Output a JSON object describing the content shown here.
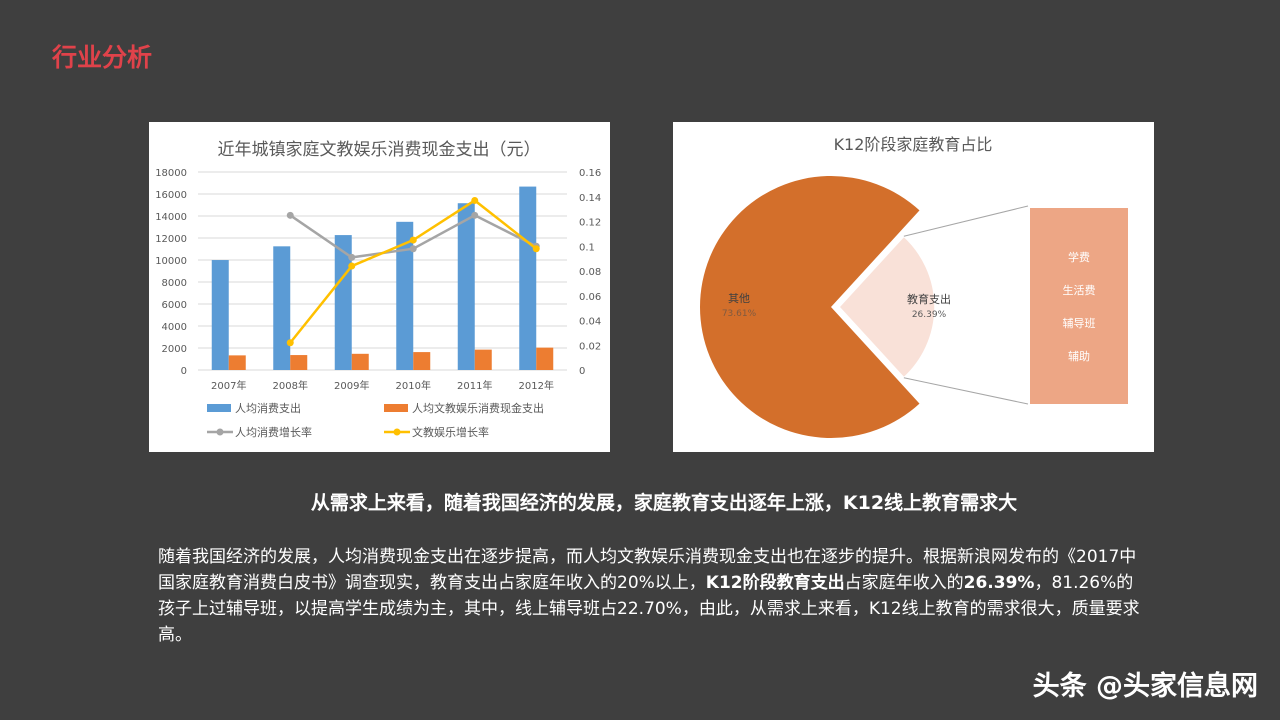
{
  "slide": {
    "title": "行业分析",
    "headline": "从需求上来看，随着我国经济的发展，家庭教育支出逐年上涨，K12线上教育需求大",
    "body": [
      "随着我国经济的发展，人均消费现金支出在逐步提高，而人均文教娱乐消费现金支出也在逐步的提升。根据新浪网发布的《2017中国家庭教育消费白皮书》调查现实，教育支出占家庭年收入的20%以上，",
      "K12阶段教育支出",
      "占家庭年收入的",
      "26.39%",
      "，81.26%的孩子上过辅导班，以提高学生成绩为主，其中，线上辅导班占22.70%，由此，从需求上来看，K12线上教育的需求很大，质量要求高。"
    ],
    "watermark": "头条 @头家信息网"
  },
  "chart_data": [
    {
      "type": "bar+line",
      "title": "近年城镇家庭文教娱乐消费现金支出（元）",
      "categories": [
        "2007年",
        "2008年",
        "2009年",
        "2010年",
        "2011年",
        "2012年"
      ],
      "ylim": [
        0,
        18000
      ],
      "yticks": [
        "0",
        "2000",
        "4000",
        "6000",
        "8000",
        "10000",
        "12000",
        "14000",
        "16000",
        "18000"
      ],
      "y2lim": [
        0,
        0.16
      ],
      "y2ticks": [
        "0",
        "0.02",
        "0.04",
        "0.06",
        "0.08",
        "0.1",
        "0.12",
        "0.14",
        "0.16"
      ],
      "grid": true,
      "legend": "bottom",
      "series": [
        {
          "name": "人均消费支出",
          "type": "bar",
          "axis": "left",
          "color": "#5b9bd5",
          "values": [
            9997,
            11243,
            12265,
            13471,
            15161,
            16674
          ]
        },
        {
          "name": "人均文教娱乐消费现金支出",
          "type": "bar",
          "axis": "left",
          "color": "#ed7d31",
          "values": [
            1330,
            1358,
            1472,
            1628,
            1852,
            2034
          ]
        },
        {
          "name": "人均消费增长率",
          "type": "line",
          "axis": "right",
          "color": "#a5a5a5",
          "values": [
            null,
            0.125,
            0.091,
            0.098,
            0.125,
            0.1
          ]
        },
        {
          "name": "文教娱乐增长率",
          "type": "line",
          "axis": "right",
          "color": "#ffc000",
          "values": [
            null,
            0.022,
            0.084,
            0.105,
            0.137,
            0.098
          ]
        }
      ]
    },
    {
      "type": "pie",
      "title": "K12阶段家庭教育占比",
      "slices": [
        {
          "label": "其他",
          "value": 73.61,
          "pct": "73.61%",
          "color": "#d36f2b"
        },
        {
          "label": "教育支出",
          "value": 26.39,
          "pct": "26.39%",
          "color": "#f9e1d8"
        }
      ],
      "breakdown": {
        "color": "#eda685",
        "items": [
          "学费",
          "生活费",
          "辅导班",
          "辅助"
        ]
      }
    }
  ]
}
